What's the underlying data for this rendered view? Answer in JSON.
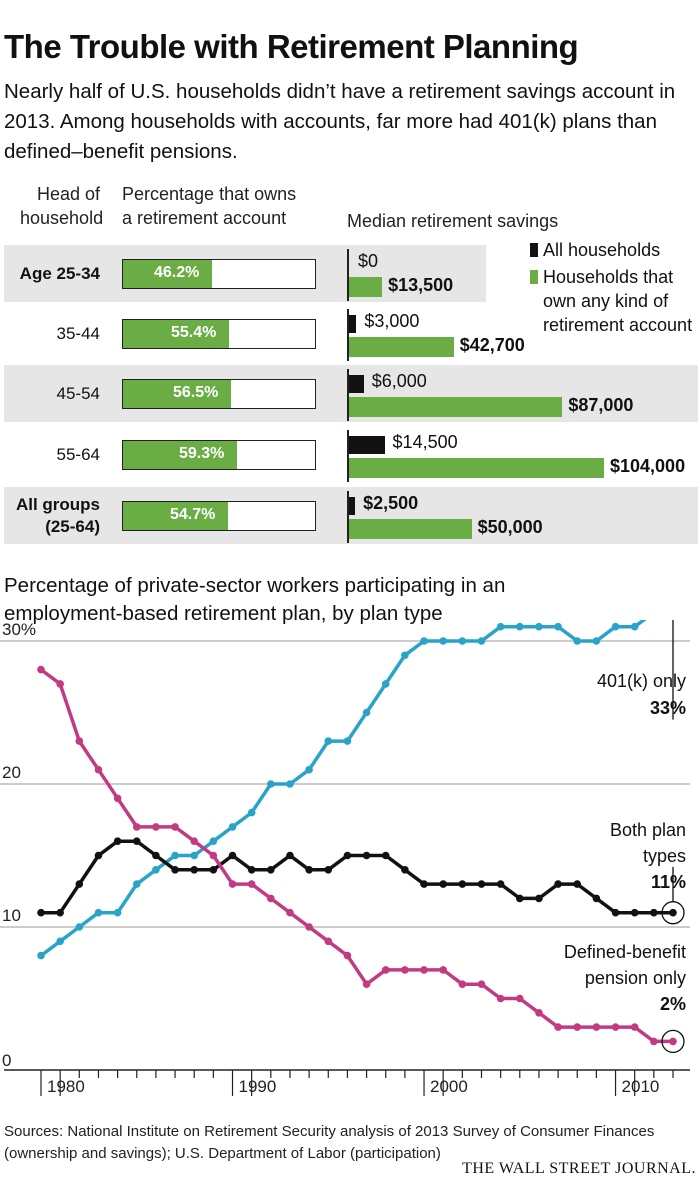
{
  "title": "The Trouble with Retirement Planning",
  "subtitle": "Nearly half of U.S. households didn’t have a retirement savings account in 2013. Among households with accounts, far more had 401(k) plans than defined–benefit pensions.",
  "headers": {
    "head1": "Head of",
    "head2": "household",
    "pct1": "Percentage that owns",
    "pct2": "a retirement account",
    "median": "Median retirement savings"
  },
  "legend": {
    "all": "All households",
    "own1": "Households that",
    "own2": "own any kind of",
    "own3": "retirement account"
  },
  "colors": {
    "green": "#6aad45",
    "black": "#111111",
    "blue": "#2aa3c9",
    "magenta": "#c23a82",
    "band": "#e6e6e6"
  },
  "chart_data": [
    {
      "type": "bar",
      "title": "Median retirement savings by head of household",
      "categories": [
        "Age 25-34",
        "35-44",
        "45-54",
        "55-64",
        "All groups (25-64)"
      ],
      "rows": [
        {
          "label": "Age 25-34",
          "label2": "",
          "pct": 46.2,
          "pct_label": "46.2%",
          "all": 0,
          "all_label": "$0",
          "own": 13500,
          "own_label": "$13,500"
        },
        {
          "label": "35-44",
          "label2": "",
          "pct": 55.4,
          "pct_label": "55.4%",
          "all": 3000,
          "all_label": "$3,000",
          "own": 42700,
          "own_label": "$42,700"
        },
        {
          "label": "45-54",
          "label2": "",
          "pct": 56.5,
          "pct_label": "56.5%",
          "all": 6000,
          "all_label": "$6,000",
          "own": 87000,
          "own_label": "$87,000"
        },
        {
          "label": "55-64",
          "label2": "",
          "pct": 59.3,
          "pct_label": "59.3%",
          "all": 14500,
          "all_label": "$14,500",
          "own": 104000,
          "own_label": "$104,000"
        },
        {
          "label": "All groups",
          "label2": "(25-64)",
          "pct": 54.7,
          "pct_label": "54.7%",
          "all": 2500,
          "all_label": "$2,500",
          "own": 50000,
          "own_label": "$50,000"
        }
      ],
      "pct_max": 100,
      "savings_max": 104000
    },
    {
      "type": "line",
      "title": "Percentage of private-sector workers participating in an employment-based retirement plan, by plan type",
      "x": [
        1979,
        1980,
        1981,
        1982,
        1983,
        1984,
        1985,
        1986,
        1987,
        1988,
        1989,
        1990,
        1991,
        1992,
        1993,
        1994,
        1995,
        1996,
        1997,
        1998,
        1999,
        2000,
        2001,
        2002,
        2003,
        2004,
        2005,
        2006,
        2007,
        2008,
        2009,
        2010,
        2011,
        2012
      ],
      "xticks": [
        1980,
        1990,
        2000,
        2010
      ],
      "xtick_labels": [
        "1980",
        "1990",
        "2000",
        "2010"
      ],
      "yticks": [
        0,
        10,
        20,
        30
      ],
      "ytick_labels": [
        "0",
        "10",
        "20",
        "30%"
      ],
      "xlim": [
        1978.5,
        2012.5
      ],
      "ylim": [
        0,
        34
      ],
      "series": [
        {
          "name": "401(k) only",
          "end_label": "33%",
          "color": "#2aa3c9",
          "values": [
            8,
            9,
            10,
            11,
            11,
            13,
            14,
            15,
            15,
            16,
            17,
            18,
            20,
            20,
            21,
            23,
            23,
            25,
            27,
            29,
            30,
            30,
            30,
            30,
            31,
            31,
            31,
            31,
            30,
            30,
            31,
            31,
            32,
            33
          ]
        },
        {
          "name": "Both plan types",
          "end_label": "11%",
          "color": "#111111",
          "values": [
            11,
            11,
            13,
            15,
            16,
            16,
            15,
            14,
            14,
            14,
            15,
            14,
            14,
            15,
            14,
            14,
            15,
            15,
            15,
            14,
            13,
            13,
            13,
            13,
            13,
            12,
            12,
            13,
            13,
            12,
            11,
            11,
            11,
            11
          ]
        },
        {
          "name": "Defined-benefit pension only",
          "end_label": "2%",
          "color": "#c23a82",
          "values": [
            28,
            27,
            23,
            21,
            19,
            17,
            17,
            17,
            16,
            15,
            13,
            13,
            12,
            11,
            10,
            9,
            8,
            6,
            7,
            7,
            7,
            7,
            6,
            6,
            5,
            5,
            4,
            3,
            3,
            3,
            3,
            3,
            2,
            2
          ]
        }
      ],
      "annotations": {
        "k1": "401(k) only",
        "k2": "33%",
        "b1": "Both plan",
        "b2": "types",
        "b3": "11%",
        "d1": "Defined-benefit",
        "d2": "pension only",
        "d3": "2%"
      }
    }
  ],
  "source": "Sources: National Institute on Retirement Security analysis of 2013 Survey of Consumer Finances (ownership and savings); U.S. Department of Labor (participation)",
  "publisher": "THE WALL STREET JOURNAL."
}
